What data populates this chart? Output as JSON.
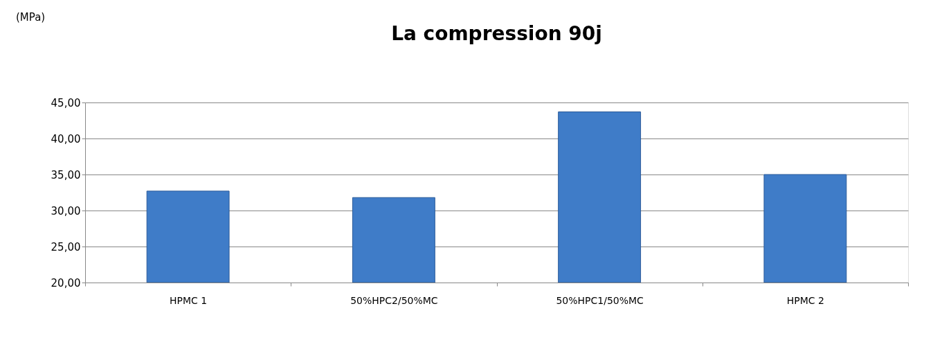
{
  "chart_data": {
    "type": "bar",
    "title": "La compression 90j",
    "annotations": [
      "(MPa)"
    ],
    "categories": [
      "HPMC 1",
      "50%HPC2/50%MC",
      "50%HPC1/50%MC",
      "HPMC 2"
    ],
    "values": [
      32.7,
      31.8,
      43.7,
      35.0
    ],
    "color": "#3f7cc8",
    "ylim": [
      20,
      45
    ],
    "yticks": [
      {
        "value": 20,
        "label": "20,00"
      },
      {
        "value": 25,
        "label": "25,00"
      },
      {
        "value": 30,
        "label": "30,00"
      },
      {
        "value": 35,
        "label": "35,00"
      },
      {
        "value": 40,
        "label": "40,00"
      },
      {
        "value": 45,
        "label": "45,00"
      }
    ],
    "grid": "y"
  }
}
